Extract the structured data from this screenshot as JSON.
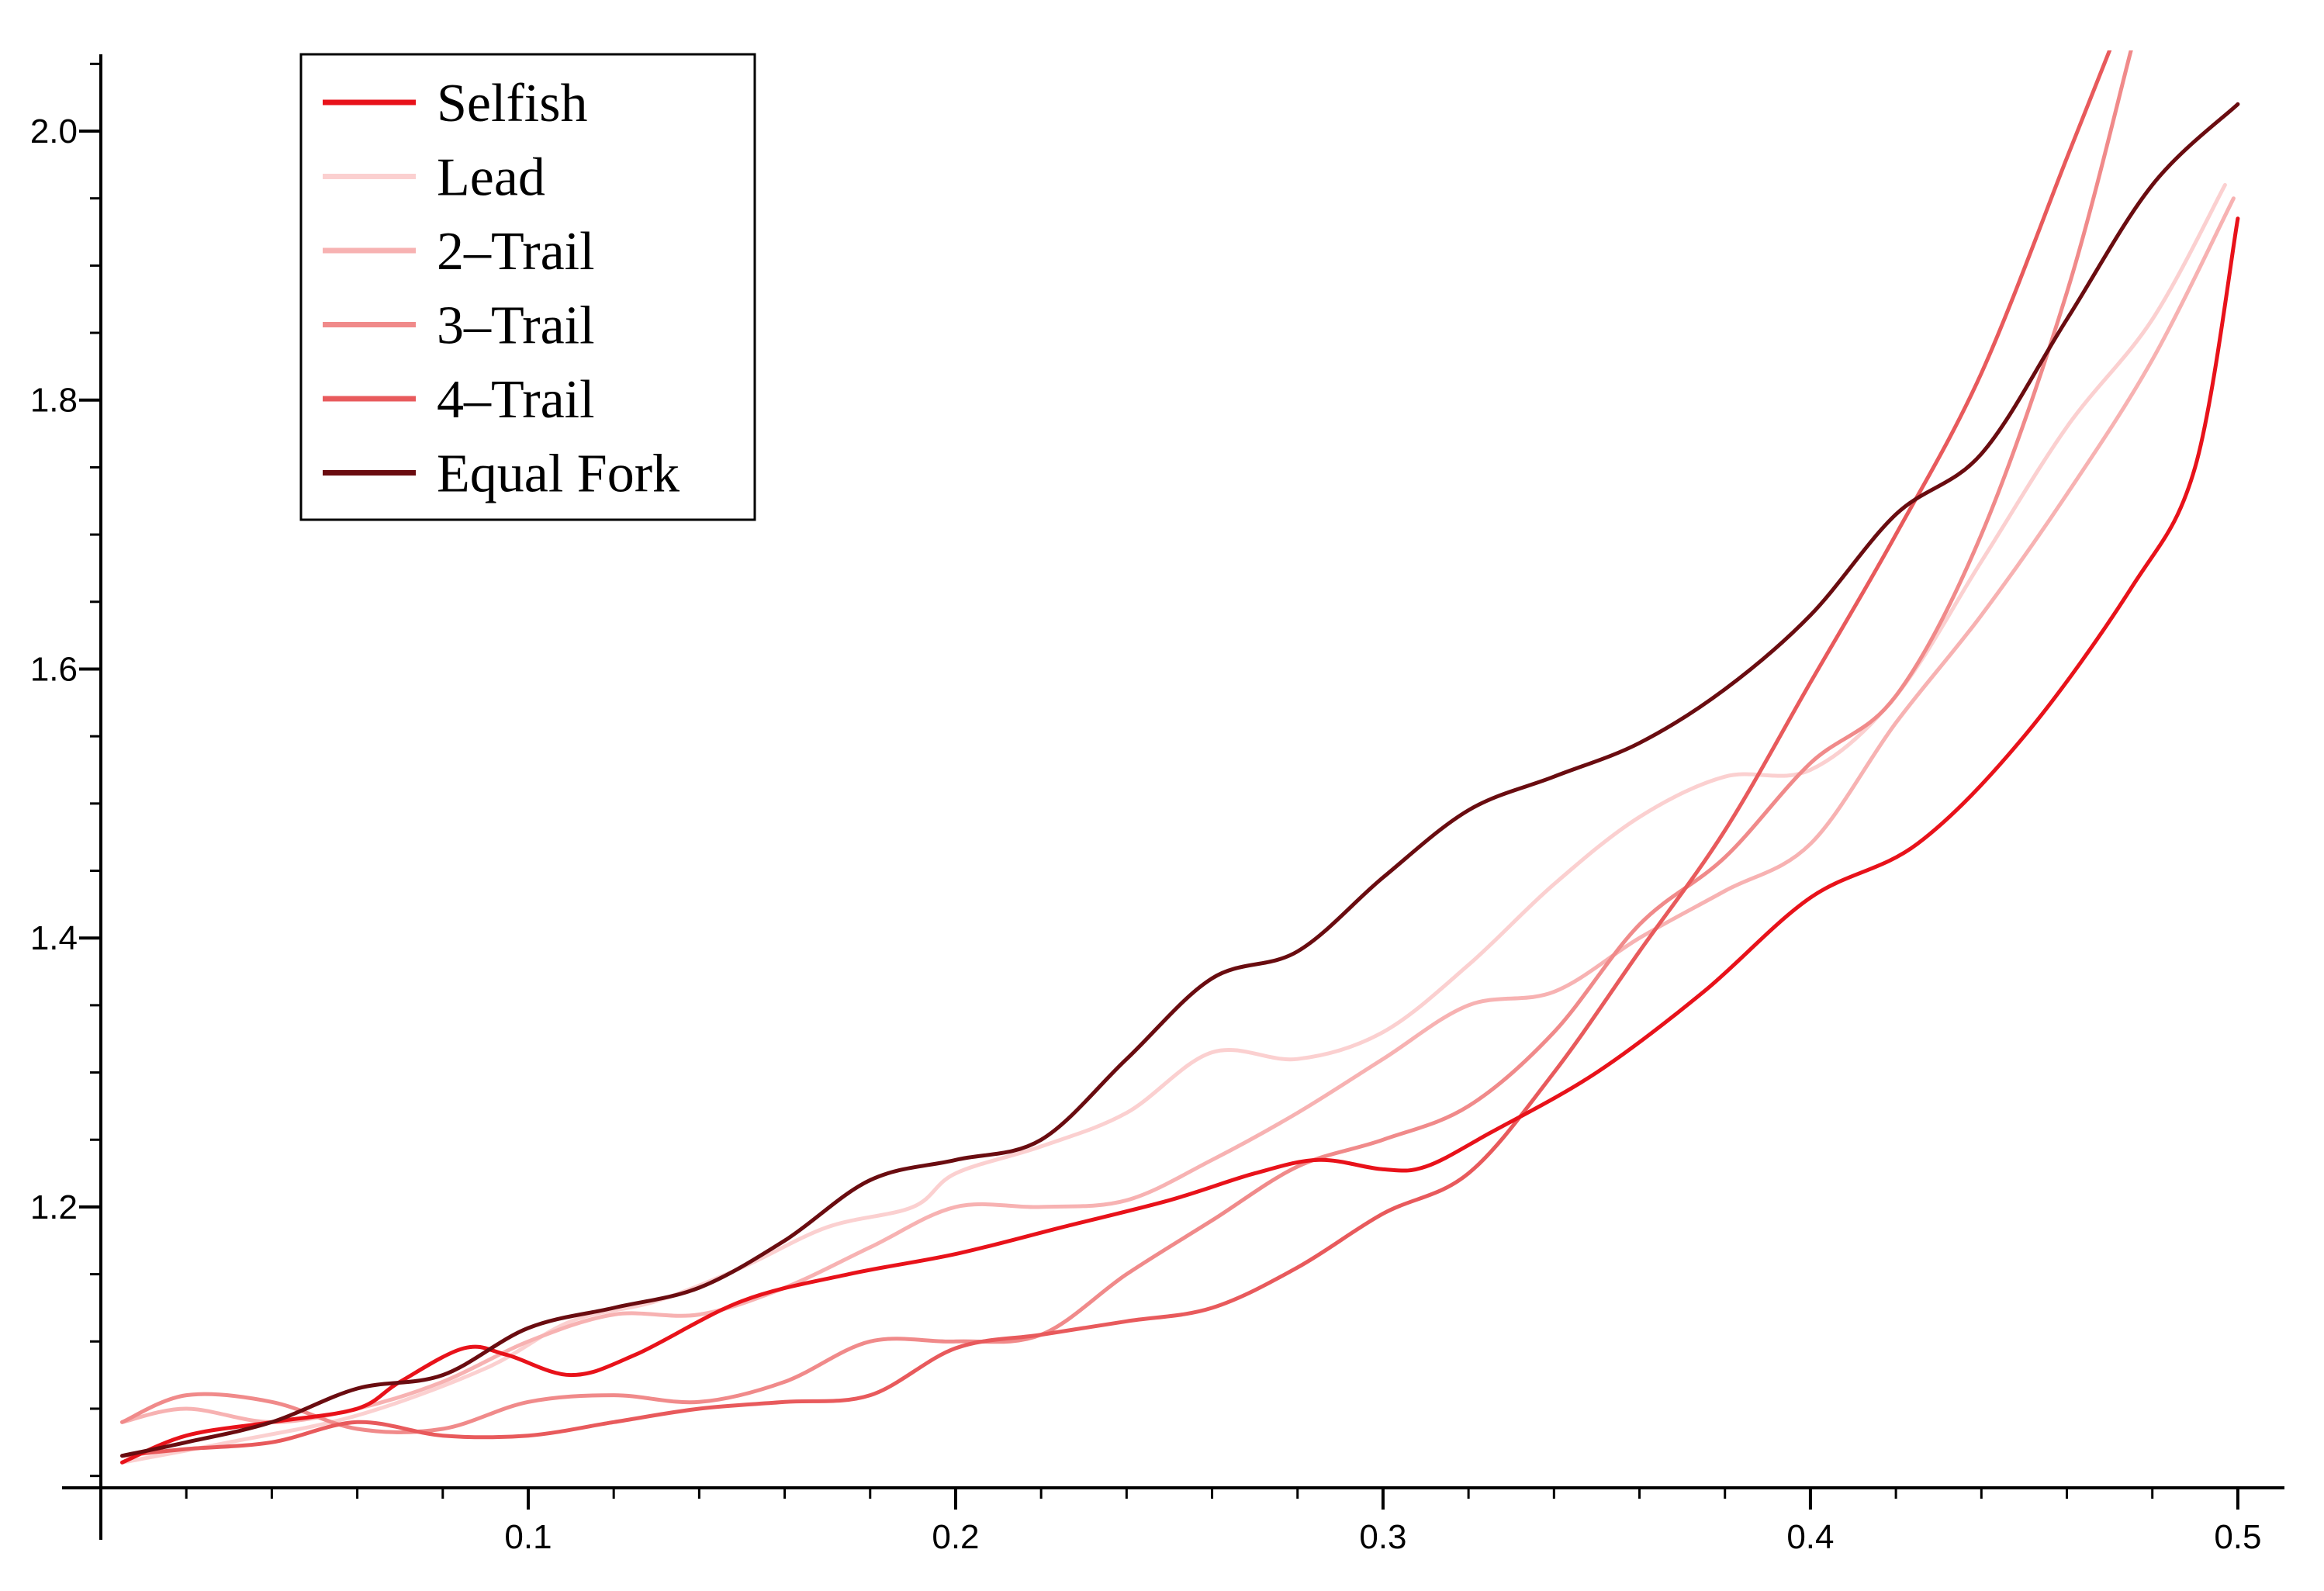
{
  "chart_data": {
    "type": "line",
    "title": "",
    "xlabel": "",
    "ylabel": "",
    "xlim": [
      0.0,
      0.51
    ],
    "ylim": [
      0.99,
      2.06
    ],
    "x_ticks": [
      0.1,
      0.2,
      0.3,
      0.4,
      0.5
    ],
    "x_tick_labels": [
      "0.1",
      "0.2",
      "0.3",
      "0.4",
      "0.5"
    ],
    "y_ticks": [
      1.2,
      1.4,
      1.6,
      1.8,
      2.0
    ],
    "y_tick_labels": [
      "1.2",
      "1.4",
      "1.6",
      "1.8",
      "2.0"
    ],
    "grid": false,
    "legend_position": "top-left",
    "series": [
      {
        "name": "Selfish",
        "color": "#e8121a",
        "points": [
          [
            0.005,
            1.01
          ],
          [
            0.02,
            1.03
          ],
          [
            0.04,
            1.04
          ],
          [
            0.06,
            1.05
          ],
          [
            0.07,
            1.07
          ],
          [
            0.085,
            1.095
          ],
          [
            0.095,
            1.09
          ],
          [
            0.11,
            1.075
          ],
          [
            0.125,
            1.09
          ],
          [
            0.15,
            1.13
          ],
          [
            0.175,
            1.15
          ],
          [
            0.2,
            1.165
          ],
          [
            0.225,
            1.185
          ],
          [
            0.25,
            1.205
          ],
          [
            0.27,
            1.225
          ],
          [
            0.285,
            1.235
          ],
          [
            0.3,
            1.228
          ],
          [
            0.31,
            1.23
          ],
          [
            0.325,
            1.255
          ],
          [
            0.35,
            1.3
          ],
          [
            0.375,
            1.36
          ],
          [
            0.4,
            1.43
          ],
          [
            0.425,
            1.47
          ],
          [
            0.45,
            1.55
          ],
          [
            0.475,
            1.66
          ],
          [
            0.49,
            1.75
          ],
          [
            0.5,
            1.935
          ]
        ]
      },
      {
        "name": "Lead",
        "color": "#fbd0d0",
        "points": [
          [
            0.005,
            1.01
          ],
          [
            0.03,
            1.025
          ],
          [
            0.06,
            1.045
          ],
          [
            0.09,
            1.08
          ],
          [
            0.11,
            1.115
          ],
          [
            0.13,
            1.13
          ],
          [
            0.15,
            1.155
          ],
          [
            0.17,
            1.185
          ],
          [
            0.19,
            1.2
          ],
          [
            0.2,
            1.225
          ],
          [
            0.22,
            1.245
          ],
          [
            0.24,
            1.27
          ],
          [
            0.26,
            1.315
          ],
          [
            0.28,
            1.31
          ],
          [
            0.3,
            1.33
          ],
          [
            0.32,
            1.38
          ],
          [
            0.34,
            1.44
          ],
          [
            0.36,
            1.49
          ],
          [
            0.38,
            1.52
          ],
          [
            0.4,
            1.525
          ],
          [
            0.42,
            1.58
          ],
          [
            0.44,
            1.68
          ],
          [
            0.46,
            1.78
          ],
          [
            0.48,
            1.86
          ],
          [
            0.497,
            1.96
          ]
        ]
      },
      {
        "name": "2–Trail",
        "color": "#f7b2b2",
        "points": [
          [
            0.005,
            1.04
          ],
          [
            0.02,
            1.05
          ],
          [
            0.04,
            1.04
          ],
          [
            0.06,
            1.05
          ],
          [
            0.08,
            1.07
          ],
          [
            0.1,
            1.1
          ],
          [
            0.12,
            1.12
          ],
          [
            0.14,
            1.12
          ],
          [
            0.16,
            1.14
          ],
          [
            0.18,
            1.17
          ],
          [
            0.2,
            1.2
          ],
          [
            0.22,
            1.2
          ],
          [
            0.24,
            1.205
          ],
          [
            0.26,
            1.235
          ],
          [
            0.28,
            1.27
          ],
          [
            0.3,
            1.31
          ],
          [
            0.32,
            1.35
          ],
          [
            0.34,
            1.36
          ],
          [
            0.36,
            1.4
          ],
          [
            0.38,
            1.435
          ],
          [
            0.4,
            1.47
          ],
          [
            0.42,
            1.56
          ],
          [
            0.44,
            1.64
          ],
          [
            0.46,
            1.73
          ],
          [
            0.48,
            1.83
          ],
          [
            0.499,
            1.95
          ]
        ]
      },
      {
        "name": "3–Trail",
        "color": "#f08a8a",
        "points": [
          [
            0.005,
            1.04
          ],
          [
            0.02,
            1.06
          ],
          [
            0.04,
            1.055
          ],
          [
            0.06,
            1.035
          ],
          [
            0.08,
            1.035
          ],
          [
            0.1,
            1.055
          ],
          [
            0.12,
            1.06
          ],
          [
            0.14,
            1.055
          ],
          [
            0.16,
            1.07
          ],
          [
            0.18,
            1.1
          ],
          [
            0.2,
            1.1
          ],
          [
            0.22,
            1.105
          ],
          [
            0.24,
            1.15
          ],
          [
            0.26,
            1.19
          ],
          [
            0.28,
            1.23
          ],
          [
            0.3,
            1.25
          ],
          [
            0.32,
            1.275
          ],
          [
            0.34,
            1.33
          ],
          [
            0.36,
            1.41
          ],
          [
            0.38,
            1.46
          ],
          [
            0.4,
            1.53
          ],
          [
            0.42,
            1.58
          ],
          [
            0.44,
            1.7
          ],
          [
            0.46,
            1.88
          ],
          [
            0.475,
            2.06
          ]
        ]
      },
      {
        "name": "4–Trail",
        "color": "#e85a5c",
        "points": [
          [
            0.005,
            1.015
          ],
          [
            0.02,
            1.02
          ],
          [
            0.04,
            1.025
          ],
          [
            0.06,
            1.04
          ],
          [
            0.08,
            1.03
          ],
          [
            0.1,
            1.03
          ],
          [
            0.12,
            1.04
          ],
          [
            0.14,
            1.05
          ],
          [
            0.16,
            1.055
          ],
          [
            0.18,
            1.06
          ],
          [
            0.2,
            1.095
          ],
          [
            0.22,
            1.105
          ],
          [
            0.24,
            1.115
          ],
          [
            0.26,
            1.125
          ],
          [
            0.28,
            1.155
          ],
          [
            0.3,
            1.195
          ],
          [
            0.32,
            1.225
          ],
          [
            0.34,
            1.3
          ],
          [
            0.36,
            1.39
          ],
          [
            0.38,
            1.48
          ],
          [
            0.4,
            1.59
          ],
          [
            0.42,
            1.7
          ],
          [
            0.44,
            1.82
          ],
          [
            0.46,
            1.98
          ],
          [
            0.47,
            2.06
          ]
        ]
      },
      {
        "name": "Equal Fork",
        "color": "#6a0c10",
        "points": [
          [
            0.005,
            1.015
          ],
          [
            0.02,
            1.025
          ],
          [
            0.04,
            1.04
          ],
          [
            0.06,
            1.065
          ],
          [
            0.08,
            1.075
          ],
          [
            0.1,
            1.11
          ],
          [
            0.12,
            1.125
          ],
          [
            0.14,
            1.14
          ],
          [
            0.16,
            1.175
          ],
          [
            0.18,
            1.22
          ],
          [
            0.2,
            1.235
          ],
          [
            0.22,
            1.25
          ],
          [
            0.24,
            1.31
          ],
          [
            0.26,
            1.37
          ],
          [
            0.28,
            1.39
          ],
          [
            0.3,
            1.445
          ],
          [
            0.32,
            1.495
          ],
          [
            0.34,
            1.52
          ],
          [
            0.36,
            1.545
          ],
          [
            0.38,
            1.585
          ],
          [
            0.4,
            1.64
          ],
          [
            0.42,
            1.715
          ],
          [
            0.44,
            1.76
          ],
          [
            0.46,
            1.86
          ],
          [
            0.48,
            1.96
          ],
          [
            0.5,
            2.02
          ]
        ]
      }
    ]
  }
}
